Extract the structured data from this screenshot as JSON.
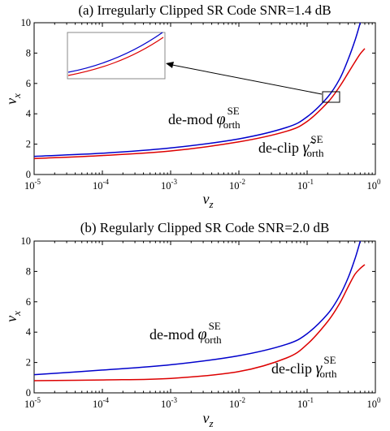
{
  "chart_data": [
    {
      "type": "line",
      "title": "(a) Irregularly Clipped SR Code  SNR=1.4 dB",
      "xlabel": "v",
      "xlabel_sub": "z",
      "ylabel": "v",
      "ylabel_sub": "x",
      "xscale": "log",
      "xlim": [
        1e-05,
        1
      ],
      "ylim": [
        0,
        10
      ],
      "xtick_values": [
        1e-05,
        0.0001,
        0.001,
        0.01,
        0.1,
        1
      ],
      "xtick_base": "10",
      "xtick_exps": [
        "-5",
        "-4",
        "-3",
        "-2",
        "-1",
        "0"
      ],
      "yticks": [
        "0",
        "2",
        "4",
        "6",
        "8",
        "10"
      ],
      "grid": false,
      "inset": true,
      "series": [
        {
          "color": "#0000cc",
          "x": [
            1e-05,
            0.0001,
            0.001,
            0.01,
            0.05,
            0.1,
            0.2,
            0.3,
            0.4,
            0.5,
            0.6
          ],
          "y": [
            1.2,
            1.4,
            1.75,
            2.35,
            3.1,
            3.8,
            5.1,
            6.3,
            7.6,
            8.8,
            10.0
          ]
        },
        {
          "color": "#dd0000",
          "x": [
            1e-05,
            0.0001,
            0.001,
            0.01,
            0.05,
            0.1,
            0.2,
            0.3,
            0.4,
            0.5,
            0.6,
            0.7
          ],
          "y": [
            1.05,
            1.25,
            1.55,
            2.15,
            2.85,
            3.5,
            4.75,
            5.8,
            6.7,
            7.4,
            7.95,
            8.3
          ]
        }
      ],
      "annotations": [
        {
          "base": "de-mod ",
          "sym": "φ",
          "sup": "SE",
          "sub": "orth"
        },
        {
          "base": "de-clip ",
          "sym": "γ̃",
          "sup": "SE",
          "sub": "orth"
        }
      ]
    },
    {
      "type": "line",
      "title": "(b) Regularly Clipped SR Code SNR=2.0 dB",
      "xlabel": "v",
      "xlabel_sub": "z",
      "ylabel": "v",
      "ylabel_sub": "x",
      "xscale": "log",
      "xlim": [
        1e-05,
        1
      ],
      "ylim": [
        0,
        10
      ],
      "xtick_values": [
        1e-05,
        0.0001,
        0.001,
        0.01,
        0.1,
        1
      ],
      "xtick_base": "10",
      "xtick_exps": [
        "-5",
        "-4",
        "-3",
        "-2",
        "-1",
        "0"
      ],
      "yticks": [
        "0",
        "2",
        "4",
        "6",
        "8",
        "10"
      ],
      "grid": false,
      "inset": false,
      "series": [
        {
          "color": "#0000cc",
          "x": [
            1e-05,
            0.0001,
            0.001,
            0.01,
            0.05,
            0.1,
            0.2,
            0.3,
            0.4,
            0.5,
            0.6
          ],
          "y": [
            1.2,
            1.5,
            1.85,
            2.45,
            3.2,
            3.9,
            5.2,
            6.4,
            7.6,
            8.8,
            10.0
          ]
        },
        {
          "color": "#dd0000",
          "x": [
            1e-05,
            0.0001,
            0.001,
            0.01,
            0.05,
            0.1,
            0.2,
            0.3,
            0.4,
            0.5,
            0.6,
            0.7
          ],
          "y": [
            0.8,
            0.85,
            0.95,
            1.4,
            2.3,
            3.2,
            4.7,
            5.9,
            7.0,
            7.8,
            8.2,
            8.45
          ]
        }
      ],
      "annotations": [
        {
          "base": "de-mod ",
          "sym": "φ",
          "sup": "SE",
          "sub": "orth"
        },
        {
          "base": "de-clip ",
          "sym": "γ",
          "sup": "SE",
          "sub": "orth"
        }
      ]
    }
  ]
}
